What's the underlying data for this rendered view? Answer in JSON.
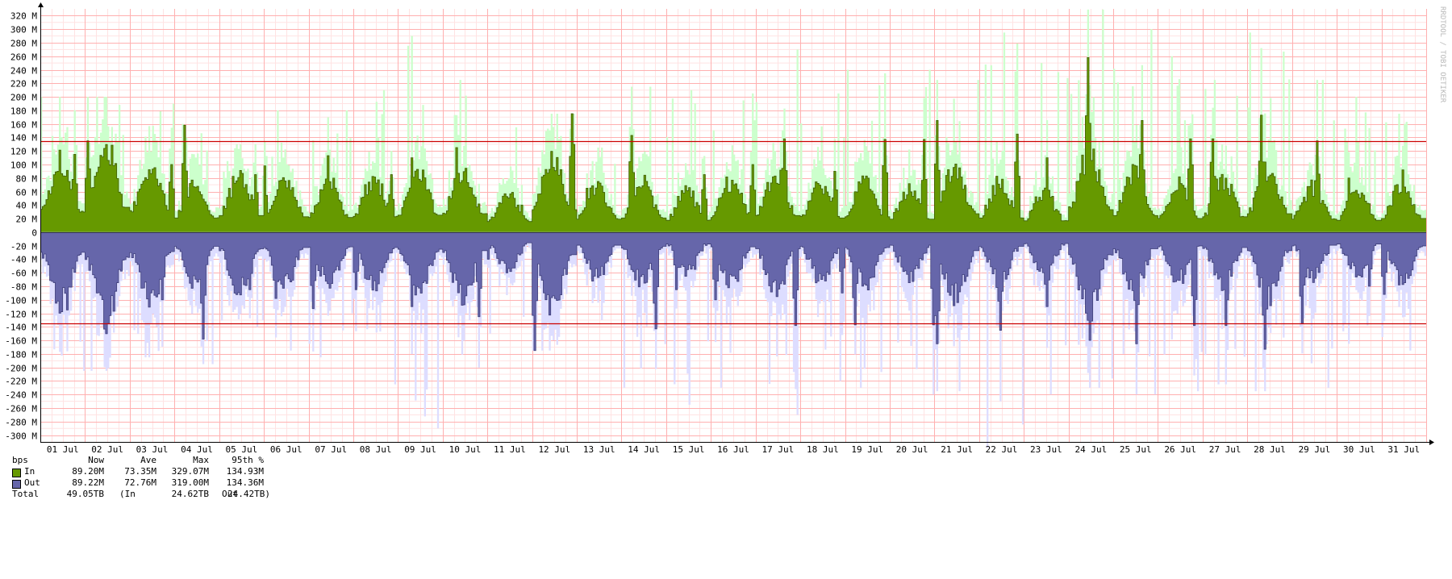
{
  "watermark": "RRDTOOL / TOBI OETIKER",
  "chart_data": {
    "type": "area",
    "title": "",
    "xlabel": "",
    "ylabel": "",
    "unit": "bps",
    "ylim": [
      -310000000,
      330000000
    ],
    "y_ticks": [
      {
        "value": 320000000,
        "label": "320 M"
      },
      {
        "value": 300000000,
        "label": "300 M"
      },
      {
        "value": 280000000,
        "label": "280 M"
      },
      {
        "value": 260000000,
        "label": "260 M"
      },
      {
        "value": 240000000,
        "label": "240 M"
      },
      {
        "value": 220000000,
        "label": "220 M"
      },
      {
        "value": 200000000,
        "label": "200 M"
      },
      {
        "value": 180000000,
        "label": "180 M"
      },
      {
        "value": 160000000,
        "label": "160 M"
      },
      {
        "value": 140000000,
        "label": "140 M"
      },
      {
        "value": 120000000,
        "label": "120 M"
      },
      {
        "value": 100000000,
        "label": "100 M"
      },
      {
        "value": 80000000,
        "label": "80 M"
      },
      {
        "value": 60000000,
        "label": "60 M"
      },
      {
        "value": 40000000,
        "label": "40 M"
      },
      {
        "value": 20000000,
        "label": "20 M"
      },
      {
        "value": 0,
        "label": "0"
      },
      {
        "value": -20000000,
        "label": "-20 M"
      },
      {
        "value": -40000000,
        "label": "-40 M"
      },
      {
        "value": -60000000,
        "label": "-60 M"
      },
      {
        "value": -80000000,
        "label": "-80 M"
      },
      {
        "value": -100000000,
        "label": "-100 M"
      },
      {
        "value": -120000000,
        "label": "-120 M"
      },
      {
        "value": -140000000,
        "label": "-140 M"
      },
      {
        "value": -160000000,
        "label": "-160 M"
      },
      {
        "value": -180000000,
        "label": "-180 M"
      },
      {
        "value": -200000000,
        "label": "-200 M"
      },
      {
        "value": -220000000,
        "label": "-220 M"
      },
      {
        "value": -240000000,
        "label": "-240 M"
      },
      {
        "value": -260000000,
        "label": "-260 M"
      },
      {
        "value": -280000000,
        "label": "-280 M"
      },
      {
        "value": -300000000,
        "label": "-300 M"
      }
    ],
    "x_days": [
      "01 Jul",
      "02 Jul",
      "03 Jul",
      "04 Jul",
      "05 Jul",
      "06 Jul",
      "07 Jul",
      "08 Jul",
      "09 Jul",
      "10 Jul",
      "11 Jul",
      "12 Jul",
      "13 Jul",
      "14 Jul",
      "15 Jul",
      "16 Jul",
      "17 Jul",
      "18 Jul",
      "19 Jul",
      "20 Jul",
      "21 Jul",
      "22 Jul",
      "23 Jul",
      "24 Jul",
      "25 Jul",
      "26 Jul",
      "27 Jul",
      "28 Jul",
      "29 Jul",
      "30 Jul",
      "31 Jul"
    ],
    "grid": true,
    "percentile_lines": [
      {
        "name": "In 95th %",
        "value": 134930000
      },
      {
        "name": "Out 95th %",
        "value": -134360000
      }
    ],
    "series": [
      {
        "name": "In",
        "daily_avg_M": [
          85,
          105,
          82,
          60,
          70,
          65,
          62,
          65,
          72,
          78,
          45,
          95,
          55,
          60,
          50,
          62,
          70,
          60,
          65,
          55,
          78,
          60,
          48,
          95,
          70,
          58,
          65,
          78,
          55,
          50,
          58
        ],
        "daily_peak_M": [
          115,
          135,
          100,
          158,
          85,
          98,
          113,
          85,
          110,
          125,
          40,
          175,
          65,
          143,
          85,
          100,
          138,
          90,
          137,
          137,
          165,
          145,
          110,
          258,
          165,
          138,
          138,
          173,
          135,
          80,
          92
        ],
        "daily_max_M": [
          200,
          200,
          190,
          160,
          130,
          180,
          180,
          210,
          290,
          225,
          155,
          175,
          125,
          215,
          210,
          205,
          270,
          205,
          240,
          240,
          225,
          295,
          250,
          329,
          300,
          260,
          225,
          295,
          225,
          200,
          175
        ],
        "color_avg": "#669900",
        "color_max": "#ccffcc"
      },
      {
        "name": "Out",
        "daily_avg_M": [
          -85,
          -105,
          -82,
          -60,
          -70,
          -65,
          -62,
          -65,
          -72,
          -78,
          -45,
          -95,
          -55,
          -60,
          -50,
          -62,
          -70,
          -60,
          -65,
          -55,
          -78,
          -60,
          -48,
          -95,
          -70,
          -58,
          -65,
          -78,
          -55,
          -50,
          -58
        ],
        "daily_peak_M": [
          -115,
          -135,
          -100,
          -158,
          -85,
          -98,
          -113,
          -85,
          -110,
          -125,
          -40,
          -175,
          -65,
          -143,
          -85,
          -100,
          -138,
          -90,
          -137,
          -137,
          -165,
          -145,
          -110,
          -160,
          -165,
          -138,
          -138,
          -173,
          -135,
          -80,
          -92
        ],
        "daily_max_M": [
          -205,
          -205,
          -185,
          -195,
          -140,
          -175,
          -185,
          -225,
          -290,
          -200,
          -150,
          -175,
          -130,
          -230,
          -255,
          -230,
          -270,
          -220,
          -230,
          -240,
          -235,
          -319,
          -240,
          -230,
          -240,
          -235,
          -225,
          -235,
          -230,
          -165,
          -175
        ],
        "color_avg": "#6666aa",
        "color_max": "#ddddff"
      }
    ]
  },
  "legend": {
    "unit_label": "bps",
    "headers": {
      "now": "Now",
      "ave": "Ave",
      "max": "Max",
      "p95": "95th %"
    },
    "rows": [
      {
        "name": "In",
        "color": "#669900",
        "now": "89.20M",
        "ave": "73.35M",
        "max": "329.07M",
        "p95": "134.93M"
      },
      {
        "name": "Out",
        "color": "#6666aa",
        "now": "89.22M",
        "ave": "72.76M",
        "max": "319.00M",
        "p95": "134.36M"
      }
    ],
    "total": {
      "label": "Total",
      "value": "49.05TB",
      "in_label": "(In",
      "in_value": "24.62TB",
      "out_label": "Out",
      "out_value": "24.42TB)"
    }
  }
}
